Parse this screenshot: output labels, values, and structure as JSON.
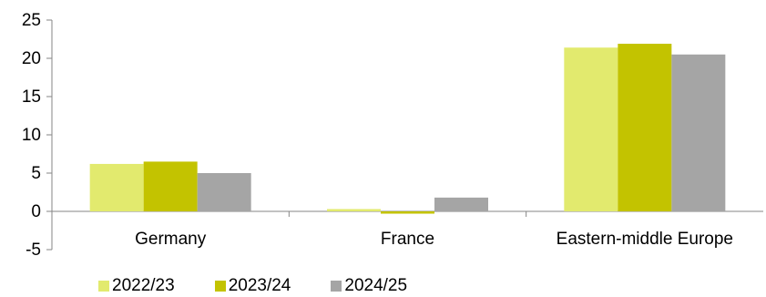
{
  "chart_data": {
    "type": "bar",
    "categories": [
      "Germany",
      "France",
      "Eastern-middle Europe"
    ],
    "series": [
      {
        "name": "2022/23",
        "values": [
          6.2,
          0.3,
          21.4
        ],
        "color": "#e2ea6e"
      },
      {
        "name": "2023/24",
        "values": [
          6.5,
          -0.3,
          21.9
        ],
        "color": "#c3c300"
      },
      {
        "name": "2024/25",
        "values": [
          5.0,
          1.8,
          20.5
        ],
        "color": "#a5a5a5"
      }
    ],
    "title": "",
    "xlabel": "",
    "ylabel": "",
    "ylim": [
      -5,
      25
    ],
    "yticks": [
      "25",
      "20",
      "15",
      "10",
      "5",
      "0",
      "-5"
    ],
    "grid": false,
    "legend_position": "bottom"
  }
}
